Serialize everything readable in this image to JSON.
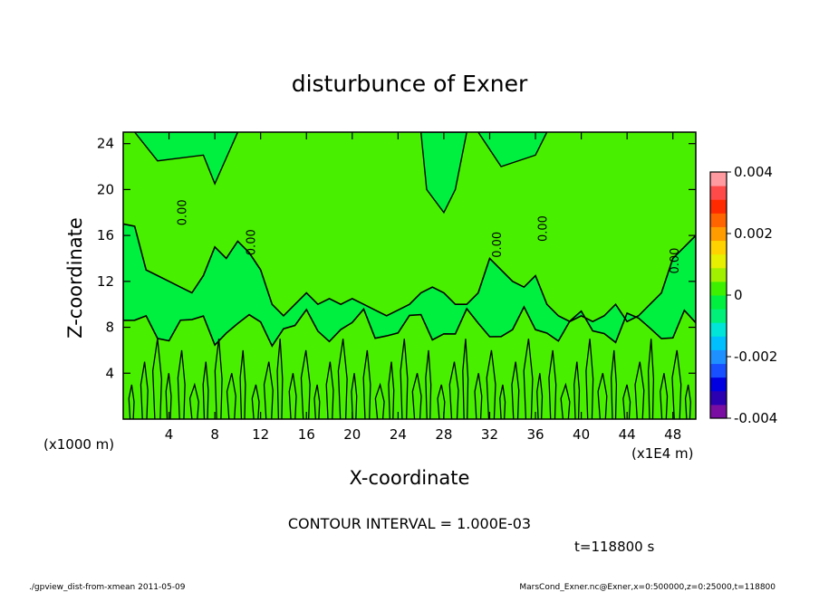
{
  "chart_data": {
    "type": "heatmap",
    "title": "disturbunce of Exner",
    "xlabel": "X-coordinate",
    "ylabel": "Z-coordinate",
    "x_unit_left": "(x1000 m)",
    "x_unit_right": "(x1E4 m)",
    "xlim": [
      0,
      50
    ],
    "ylim": [
      0,
      25
    ],
    "x_ticks": [
      4,
      8,
      12,
      16,
      20,
      24,
      28,
      32,
      36,
      40,
      44,
      48
    ],
    "y_ticks": [
      4,
      8,
      12,
      16,
      20,
      24
    ],
    "colorbar": {
      "range": [
        -0.004,
        0.004
      ],
      "tick_labels": [
        "0.004",
        "0.002",
        "0",
        "-0.002",
        "-0.004"
      ],
      "tick_values": [
        0.004,
        0.002,
        0,
        -0.002,
        -0.004
      ],
      "colors": [
        "#7a0ea3",
        "#2a00b0",
        "#0000e0",
        "#1850ff",
        "#1e90ff",
        "#00bfff",
        "#00e5d8",
        "#00f07a",
        "#00f040",
        "#3cf000",
        "#a0f000",
        "#e6f000",
        "#ffd200",
        "#ff9c00",
        "#ff6400",
        "#ff2a00",
        "#ff4a4a",
        "#ff9aa0"
      ]
    },
    "field_colors": {
      "positive_region": "#48f000",
      "zero_region": "#00f040"
    },
    "contour_labels": [
      "0.00"
    ],
    "contour_interval_text": "CONTOUR INTERVAL = 1.000E-03",
    "time_text": "t=118800 s",
    "footer_left": "./gpview_dist-from-xmean   2011-05-09",
    "footer_right": "MarsCond_Exner.nc@Exner,x=0:500000,z=0:25000,t=118800"
  }
}
